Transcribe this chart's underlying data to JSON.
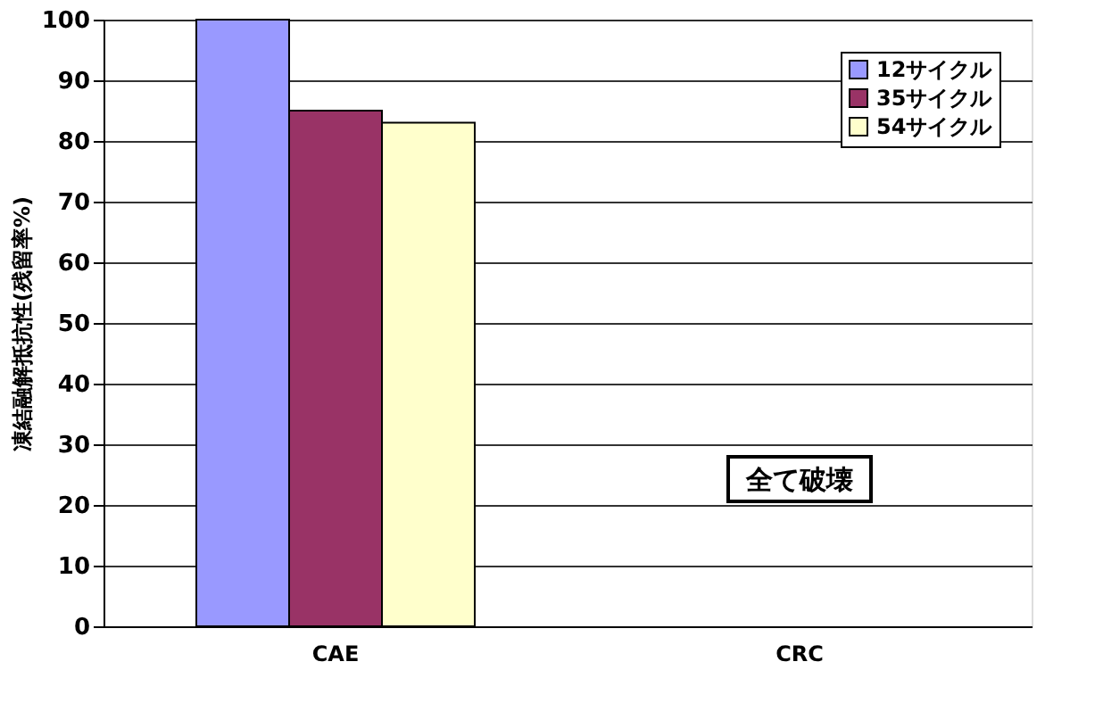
{
  "chart_data": {
    "type": "bar",
    "ylabel": "凍結融解抵抗性(残留率%)",
    "categories": [
      "CAE",
      "CRC"
    ],
    "series": [
      {
        "name": "12サイクル",
        "color": "#9999ff",
        "values": [
          100,
          null
        ]
      },
      {
        "name": "35サイクル",
        "color": "#993366",
        "values": [
          85,
          null
        ]
      },
      {
        "name": "54サイクル",
        "color": "#ffffcc",
        "values": [
          83,
          null
        ]
      }
    ],
    "ylim": [
      0,
      100
    ],
    "yticks": [
      0,
      10,
      20,
      30,
      40,
      50,
      60,
      70,
      80,
      90,
      100
    ],
    "grid": "y",
    "legend": "top right",
    "annotations": [
      "全て破壊"
    ]
  }
}
